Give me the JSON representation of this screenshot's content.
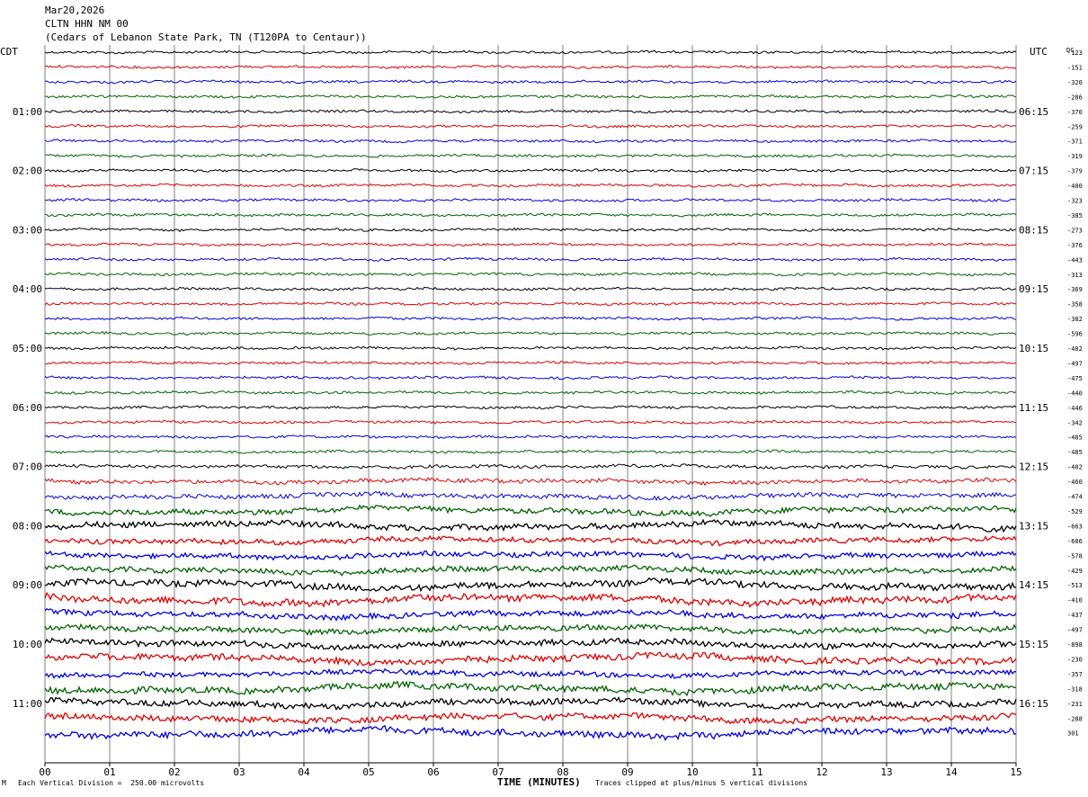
{
  "header": {
    "date": "Mar20,2026",
    "station": "CLTN HHN NM 00",
    "location": "(Cedars of Lebanon State Park, TN (T120PA to Centaur))"
  },
  "footer": {
    "scale_note": "Each Vertical Division =  250.00 microvolts",
    "clip_note": "Traces clipped at plus/minus 5 vertical divisions",
    "corner_mark": "M"
  },
  "colors": {
    "trace_cycle": [
      "#000000",
      "#e00000",
      "#0000e0",
      "#006400"
    ],
    "grid": "#808080"
  },
  "chart_data": {
    "type": "line",
    "title": "",
    "xlabel": "TIME (MINUTES)",
    "left_axis_label": "CDT",
    "right_axis_label": "UTC",
    "dc_label": "DC",
    "x_ticks": [
      "00",
      "01",
      "02",
      "03",
      "04",
      "05",
      "06",
      "07",
      "08",
      "09",
      "10",
      "11",
      "12",
      "13",
      "14",
      "15"
    ],
    "xlim": [
      0,
      15
    ],
    "left_hour_labels": [
      "01:00",
      "02:00",
      "03:00",
      "04:00",
      "05:00",
      "06:00",
      "07:00",
      "08:00",
      "09:00",
      "10:00",
      "11:00"
    ],
    "right_hour_labels": [
      "06:15",
      "07:15",
      "08:15",
      "09:15",
      "10:15",
      "11:15",
      "12:15",
      "13:15",
      "14:15",
      "15:15",
      "16:15"
    ],
    "trace_minutes_per_line": 15,
    "dc_offsets": [
      "-123",
      "-151",
      "-320",
      "-286",
      "-370",
      "-259",
      "-371",
      "-319",
      "-379",
      "-400",
      "-323",
      "-385",
      "-273",
      "-376",
      "-443",
      "-313",
      "-369",
      "-358",
      "-382",
      "-596",
      "-402",
      "-497",
      "-475",
      "-440",
      "-446",
      "-342",
      "-485",
      "-485",
      "-402",
      "-460",
      "-474",
      "-529",
      "-663",
      "-606",
      "-578",
      "-429",
      "-513",
      "-410",
      "-437",
      "-497",
      "-898",
      "-230",
      "-357",
      "-318",
      "-231",
      "-288",
      "301"
    ],
    "trace_activity": [
      1,
      1,
      1,
      1,
      1,
      1,
      1,
      1,
      1,
      1,
      1,
      1,
      1,
      1,
      1,
      1,
      1,
      1,
      1,
      1,
      1,
      1,
      1,
      1,
      1,
      1,
      1,
      1,
      1.3,
      1.6,
      1.8,
      2.2,
      2.4,
      2,
      2,
      2.2,
      2.6,
      2.8,
      2.2,
      2.2,
      2.4,
      2.6,
      2,
      2.6,
      2.4,
      2.4,
      2.6
    ]
  }
}
